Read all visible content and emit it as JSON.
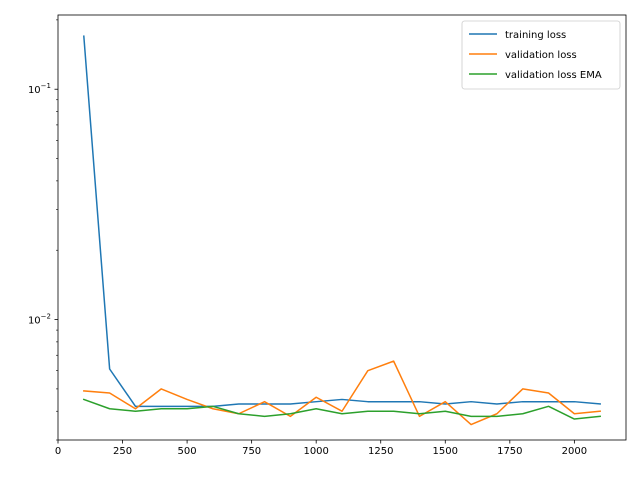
{
  "chart_data": {
    "type": "line",
    "title": "",
    "xlabel": "",
    "ylabel": "",
    "xlim": [
      0,
      2200
    ],
    "ylim": [
      0.003,
      0.21
    ],
    "yscale": "log",
    "grid": false,
    "legend_position": "top-right",
    "x_ticks": [
      0,
      250,
      500,
      750,
      1000,
      1250,
      1500,
      1750,
      2000
    ],
    "x_tick_labels": [
      "0",
      "250",
      "500",
      "750",
      "1000",
      "1250",
      "1500",
      "1750",
      "2000"
    ],
    "y_major_ticks": [
      0.01,
      0.1
    ],
    "y_tick_labels": [
      "10^-2",
      "10^-1"
    ],
    "y_minor_ticks": [
      0.003,
      0.004,
      0.005,
      0.006,
      0.007,
      0.008,
      0.009,
      0.02,
      0.03,
      0.04,
      0.05,
      0.06,
      0.07,
      0.08,
      0.09,
      0.2
    ],
    "series": [
      {
        "name": "training loss",
        "color": "#1f77b4",
        "x": [
          100,
          200,
          300,
          400,
          500,
          600,
          700,
          800,
          900,
          1000,
          1100,
          1200,
          1300,
          1400,
          1500,
          1600,
          1700,
          1800,
          1900,
          2000,
          2100
        ],
        "y": [
          0.17,
          0.0061,
          0.0042,
          0.0042,
          0.0042,
          0.0042,
          0.0043,
          0.0043,
          0.0043,
          0.0044,
          0.0045,
          0.0044,
          0.0044,
          0.0044,
          0.0043,
          0.0044,
          0.0043,
          0.0044,
          0.0044,
          0.0044,
          0.0043
        ]
      },
      {
        "name": "validation loss",
        "color": "#ff7f0e",
        "x": [
          100,
          200,
          300,
          400,
          500,
          600,
          700,
          800,
          900,
          1000,
          1100,
          1200,
          1300,
          1400,
          1500,
          1600,
          1700,
          1800,
          1900,
          2000,
          2100
        ],
        "y": [
          0.0049,
          0.0048,
          0.0041,
          0.005,
          0.0045,
          0.0041,
          0.0039,
          0.0044,
          0.0038,
          0.0046,
          0.004,
          0.006,
          0.0066,
          0.0038,
          0.0044,
          0.0035,
          0.0039,
          0.005,
          0.0048,
          0.0039,
          0.004
        ]
      },
      {
        "name": "validation loss EMA",
        "color": "#2ca02c",
        "x": [
          100,
          200,
          300,
          400,
          500,
          600,
          700,
          800,
          900,
          1000,
          1100,
          1200,
          1300,
          1400,
          1500,
          1600,
          1700,
          1800,
          1900,
          2000,
          2100
        ],
        "y": [
          0.0045,
          0.0041,
          0.004,
          0.0041,
          0.0041,
          0.0042,
          0.0039,
          0.0038,
          0.0039,
          0.0041,
          0.0039,
          0.004,
          0.004,
          0.0039,
          0.004,
          0.0038,
          0.0038,
          0.0039,
          0.0042,
          0.0037,
          0.0038
        ]
      }
    ]
  }
}
